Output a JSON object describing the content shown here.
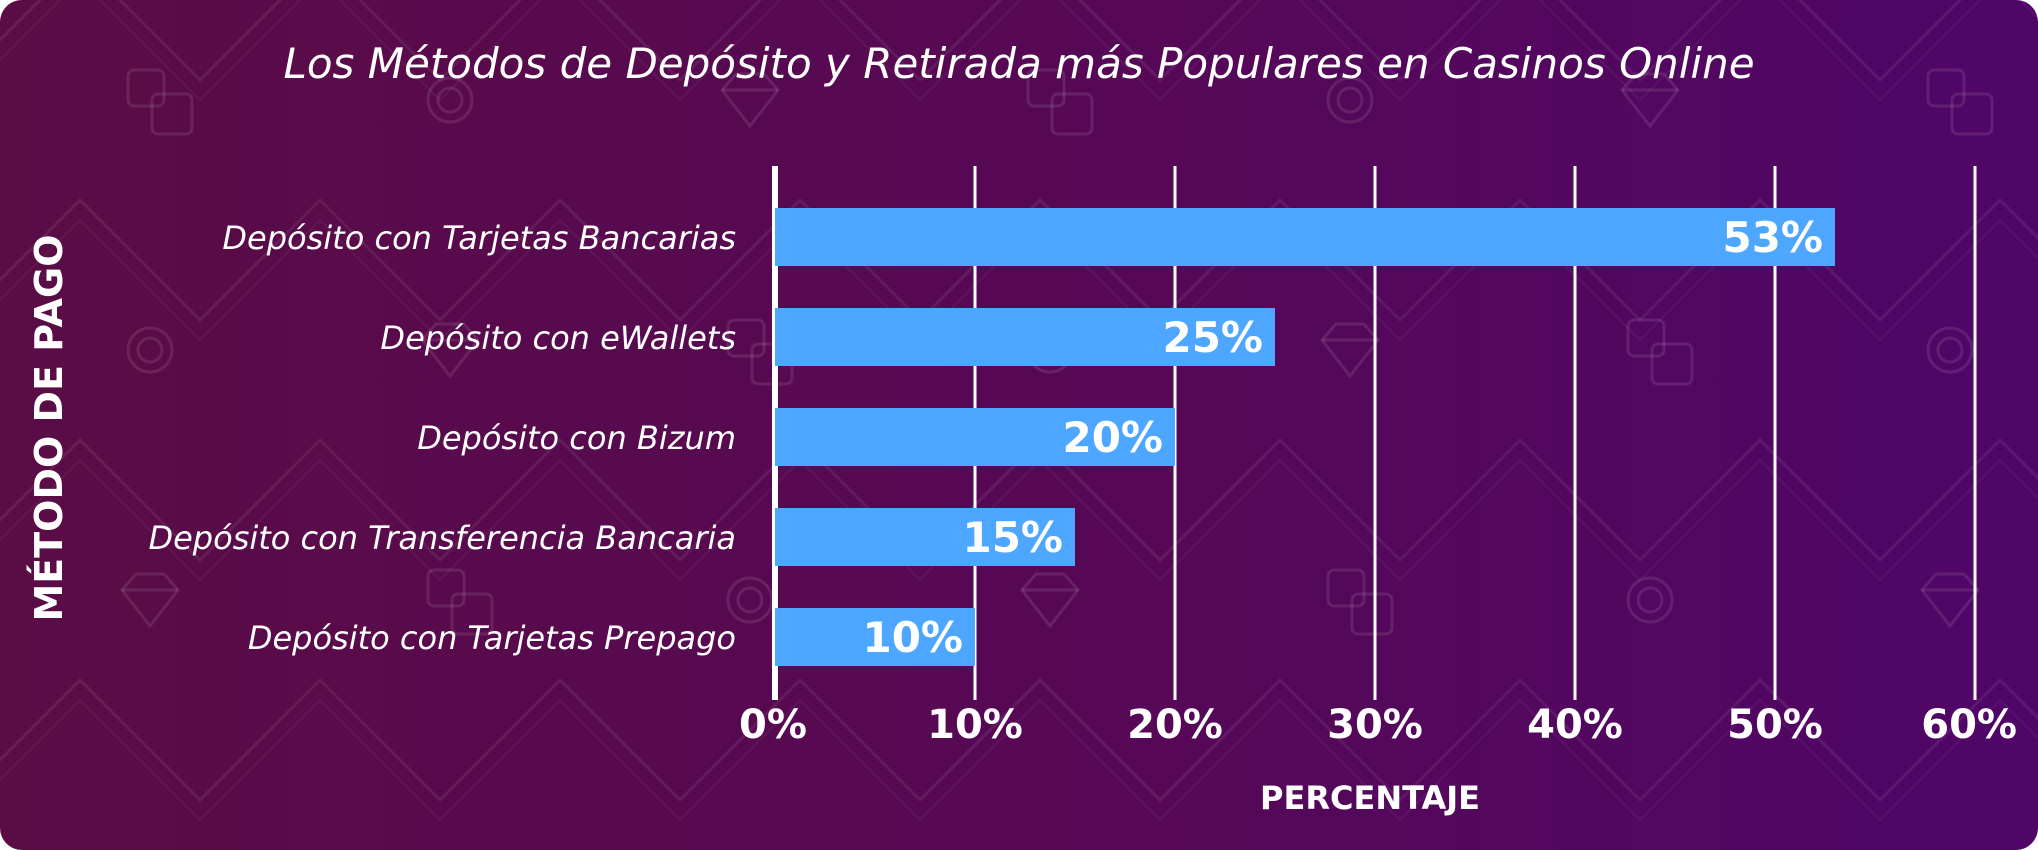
{
  "colors": {
    "background_left": "#5a0c45",
    "background_right": "#4f0667",
    "bar": "#4da6ff",
    "gridline": "#ffffff",
    "text": "#ffffff"
  },
  "background_icons": [
    "dice-icon",
    "poker-chip-icon",
    "diamond-icon",
    "sparkle-icon"
  ],
  "chart_data": {
    "type": "bar",
    "orientation": "horizontal",
    "title": "Los Métodos de Depósito y Retirada más Populares en Casinos Online",
    "xlabel": "PERCENTAJE",
    "ylabel": "MÉTODO DE PAGO",
    "categories": [
      "Depósito con Tarjetas Bancarias",
      "Depósito con eWallets",
      "Depósito con Bizum",
      "Depósito con Transferencia Bancaria",
      "Depósito con Tarjetas Prepago"
    ],
    "values": [
      53,
      25,
      20,
      15,
      10
    ],
    "value_labels": [
      "53%",
      "25%",
      "20%",
      "15%",
      "10%"
    ],
    "xlim": [
      0,
      60
    ],
    "x_ticks": [
      0,
      10,
      20,
      30,
      40,
      50,
      60
    ],
    "x_tick_labels": [
      "0%",
      "10%",
      "20%",
      "30%",
      "40%",
      "50%",
      "60%"
    ],
    "grid": true,
    "legend": "none"
  }
}
